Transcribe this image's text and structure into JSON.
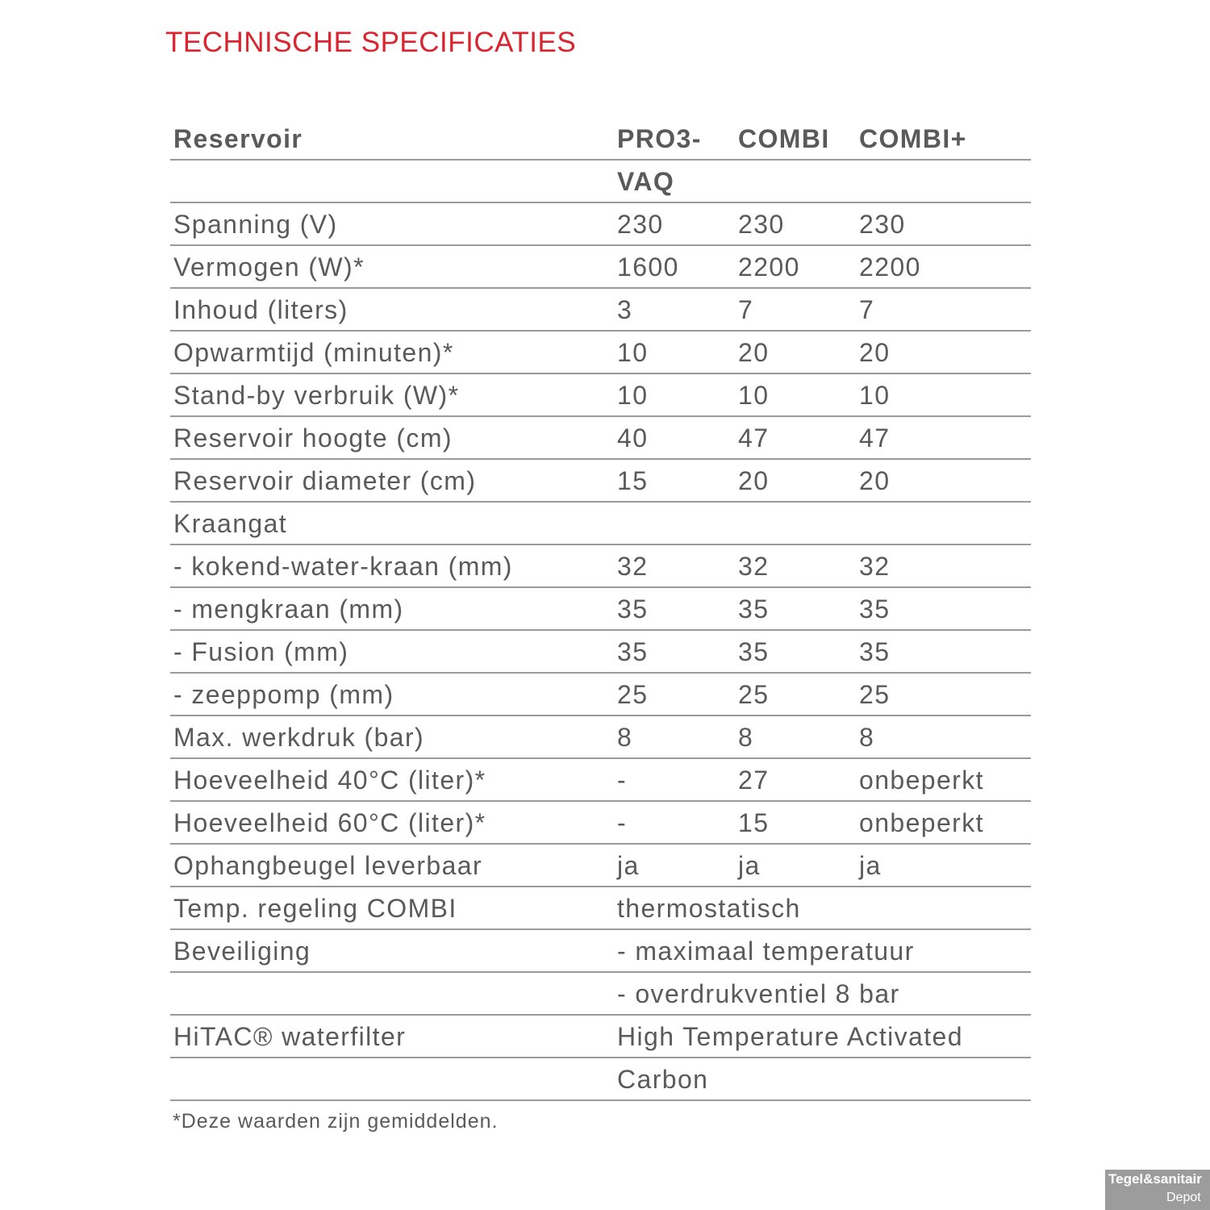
{
  "title": "TECHNISCHE SPECIFICATIES",
  "table": {
    "header": [
      "Reservoir",
      "PRO3-VAQ",
      "COMBI",
      "COMBI+"
    ],
    "rows": [
      {
        "label": "Spanning (V)",
        "values": [
          "230",
          "230",
          "230"
        ]
      },
      {
        "label": "Vermogen (W)*",
        "values": [
          "1600",
          "2200",
          "2200"
        ]
      },
      {
        "label": "Inhoud (liters)",
        "values": [
          "3",
          "7",
          "7"
        ]
      },
      {
        "label": "Opwarmtijd (minuten)*",
        "values": [
          "10",
          "20",
          "20"
        ]
      },
      {
        "label": "Stand-by verbruik (W)*",
        "values": [
          "10",
          "10",
          "10"
        ]
      },
      {
        "label": "Reservoir hoogte (cm)",
        "values": [
          "40",
          "47",
          "47"
        ]
      },
      {
        "label": "Reservoir diameter (cm)",
        "values": [
          "15",
          "20",
          "20"
        ]
      },
      {
        "label": "Kraangat"
      },
      {
        "label": "- kokend-water-kraan (mm)",
        "values": [
          "32",
          "32",
          "32"
        ]
      },
      {
        "label": "- mengkraan (mm)",
        "values": [
          "35",
          "35",
          "35"
        ]
      },
      {
        "label": "- Fusion (mm)",
        "values": [
          "35",
          "35",
          "35"
        ]
      },
      {
        "label": "- zeeppomp (mm)",
        "values": [
          "25",
          "25",
          "25"
        ]
      },
      {
        "label": "Max. werkdruk (bar)",
        "values": [
          "8",
          "8",
          "8"
        ]
      },
      {
        "label": "Hoeveelheid 40°C (liter)*",
        "values": [
          "-",
          "27",
          "onbeperkt"
        ]
      },
      {
        "label": "Hoeveelheid 60°C (liter)*",
        "values": [
          "-",
          "15",
          "onbeperkt"
        ]
      },
      {
        "label": "Ophangbeugel leverbaar",
        "values": [
          "ja",
          "ja",
          "ja"
        ]
      },
      {
        "label": "Temp. regeling COMBI",
        "value": "thermostatisch"
      },
      {
        "label": "Beveiliging",
        "value": "- maximaal temperatuur"
      },
      {
        "value": "- overdrukventiel 8 bar"
      },
      {
        "label": "HiTAC® waterfilter",
        "value": "High Temperature Activated Carbon"
      }
    ],
    "footnote": "*Deze waarden zijn gemiddelden."
  },
  "watermark": {
    "brand": "Tegel&sanitair",
    "sub": "Depot"
  }
}
